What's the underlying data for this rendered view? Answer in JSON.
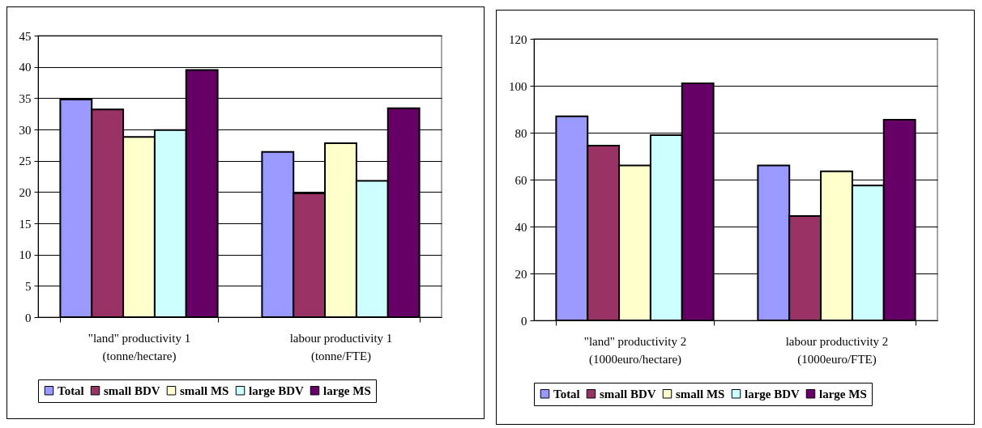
{
  "chart_data": [
    {
      "type": "bar",
      "categories": [
        "\"land\" productivity 1\n(tonne/hectare)",
        "labour productivity 1\n(tonne/FTE)"
      ],
      "series": [
        {
          "name": "Total",
          "color": "#9999ff",
          "values": [
            34.8,
            26.4
          ]
        },
        {
          "name": "small BDV",
          "color": "#993366",
          "values": [
            33.2,
            19.8
          ]
        },
        {
          "name": "small MS",
          "color": "#ffffcc",
          "values": [
            28.8,
            27.8
          ]
        },
        {
          "name": "large BDV",
          "color": "#ccffff",
          "values": [
            29.9,
            21.8
          ]
        },
        {
          "name": "large MS",
          "color": "#660066",
          "values": [
            39.5,
            33.4
          ]
        }
      ],
      "ylim": [
        0,
        45
      ],
      "yticks": [
        0,
        5,
        10,
        15,
        20,
        25,
        30,
        35,
        40,
        45
      ],
      "grid": "y",
      "legend": "bottom"
    },
    {
      "type": "bar",
      "categories": [
        "\"land\" productivity 2\n(1000euro/hectare)",
        "labour productivity 2\n(1000euro/FTE)"
      ],
      "series": [
        {
          "name": "Total",
          "color": "#9999ff",
          "values": [
            87,
            66
          ]
        },
        {
          "name": "small BDV",
          "color": "#993366",
          "values": [
            74.5,
            44.5
          ]
        },
        {
          "name": "small MS",
          "color": "#ffffcc",
          "values": [
            66,
            63.5
          ]
        },
        {
          "name": "large BDV",
          "color": "#ccffff",
          "values": [
            79,
            57.5
          ]
        },
        {
          "name": "large MS",
          "color": "#660066",
          "values": [
            101,
            85.5
          ]
        }
      ],
      "ylim": [
        0,
        120
      ],
      "yticks": [
        0,
        20,
        40,
        60,
        80,
        100,
        120
      ],
      "grid": "y",
      "legend": "bottom"
    }
  ]
}
